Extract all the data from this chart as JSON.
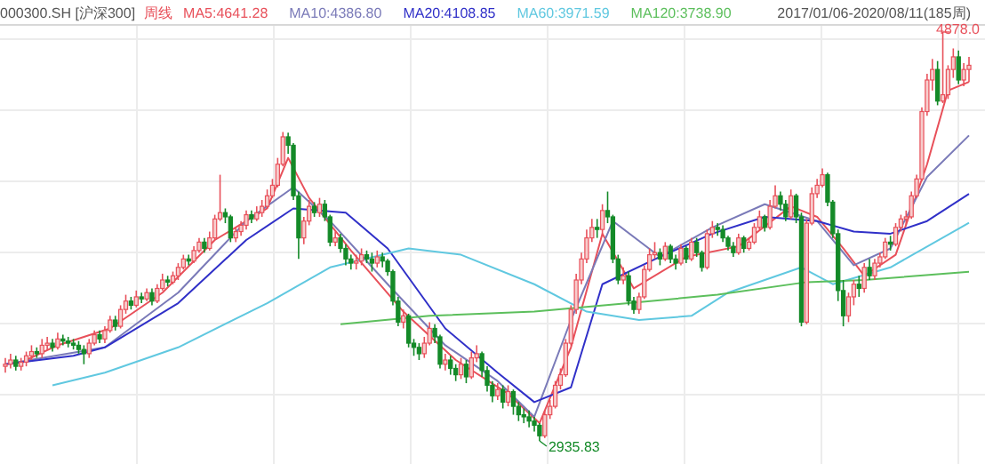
{
  "chart_data": {
    "type": "candlestick",
    "title": "000300.SH [沪深300]",
    "grid": true,
    "legend": "top",
    "annotations": [
      "周线",
      "2017/01/06-2020/08/11(185周)",
      "4878.0",
      "2935.83"
    ],
    "categories": [
      null,
      null,
      null,
      null,
      null,
      null,
      null,
      null,
      null,
      null,
      null,
      null,
      null,
      null,
      null,
      null,
      null,
      null,
      null,
      null,
      null,
      null,
      null,
      null,
      null,
      null,
      null,
      null,
      null,
      null,
      null,
      null,
      null,
      null,
      null,
      null,
      null,
      null,
      null,
      null,
      null,
      null,
      null,
      null,
      null,
      null,
      null,
      null,
      null,
      null,
      null,
      null,
      null,
      null,
      null,
      null,
      null,
      null,
      null,
      null,
      null,
      null,
      null,
      null,
      null,
      null,
      null,
      null,
      null,
      null,
      null,
      null,
      null,
      null,
      null,
      null,
      null,
      null,
      null,
      null,
      null,
      null,
      null,
      null,
      null,
      null,
      null,
      null,
      null,
      null,
      null,
      null,
      null,
      null,
      null,
      null,
      null,
      null,
      null,
      null,
      null,
      null,
      null,
      null,
      null,
      null,
      null,
      null,
      null,
      null,
      null,
      null,
      null,
      null,
      null,
      null,
      null,
      null,
      null,
      null,
      null,
      null,
      null,
      null,
      null,
      null,
      null,
      null,
      null,
      null,
      null,
      null,
      null,
      null,
      null,
      null,
      null,
      null,
      null,
      null,
      null,
      null,
      null,
      null,
      null,
      null,
      null,
      null,
      null,
      null,
      null,
      null,
      null,
      null,
      null,
      null,
      null,
      null,
      null,
      null,
      null,
      null,
      null,
      null,
      null,
      null,
      null,
      null,
      null,
      null,
      null,
      null,
      null,
      null,
      null,
      null,
      null,
      null,
      null,
      null,
      null,
      null,
      null,
      null,
      null
    ],
    "ohlc": [
      [
        3290,
        3330,
        3260,
        3300
      ],
      [
        3300,
        3350,
        3280,
        3320
      ],
      [
        3320,
        3340,
        3270,
        3290
      ],
      [
        3290,
        3330,
        3270,
        3310
      ],
      [
        3310,
        3360,
        3290,
        3340
      ],
      [
        3340,
        3390,
        3320,
        3360
      ],
      [
        3360,
        3380,
        3330,
        3350
      ],
      [
        3350,
        3420,
        3330,
        3390
      ],
      [
        3390,
        3430,
        3370,
        3400
      ],
      [
        3400,
        3420,
        3360,
        3380
      ],
      [
        3380,
        3450,
        3370,
        3420
      ],
      [
        3420,
        3440,
        3390,
        3410
      ],
      [
        3410,
        3430,
        3380,
        3400
      ],
      [
        3400,
        3420,
        3370,
        3390
      ],
      [
        3390,
        3410,
        3350,
        3370
      ],
      [
        3370,
        3390,
        3300,
        3350
      ],
      [
        3350,
        3420,
        3330,
        3400
      ],
      [
        3400,
        3460,
        3390,
        3440
      ],
      [
        3440,
        3460,
        3400,
        3420
      ],
      [
        3420,
        3480,
        3400,
        3460
      ],
      [
        3460,
        3530,
        3450,
        3510
      ],
      [
        3510,
        3530,
        3460,
        3480
      ],
      [
        3480,
        3580,
        3470,
        3560
      ],
      [
        3560,
        3630,
        3540,
        3600
      ],
      [
        3600,
        3620,
        3560,
        3580
      ],
      [
        3580,
        3650,
        3570,
        3620
      ],
      [
        3620,
        3640,
        3590,
        3610
      ],
      [
        3610,
        3660,
        3600,
        3640
      ],
      [
        3640,
        3660,
        3580,
        3600
      ],
      [
        3600,
        3680,
        3590,
        3660
      ],
      [
        3660,
        3730,
        3650,
        3700
      ],
      [
        3700,
        3720,
        3670,
        3690
      ],
      [
        3690,
        3740,
        3680,
        3720
      ],
      [
        3720,
        3780,
        3700,
        3760
      ],
      [
        3760,
        3820,
        3750,
        3800
      ],
      [
        3800,
        3820,
        3770,
        3790
      ],
      [
        3790,
        3860,
        3780,
        3840
      ],
      [
        3840,
        3900,
        3830,
        3880
      ],
      [
        3880,
        3900,
        3830,
        3850
      ],
      [
        3850,
        3930,
        3840,
        3900
      ],
      [
        3900,
        4010,
        3890,
        3990
      ],
      [
        3990,
        4200,
        3980,
        4020
      ],
      [
        4020,
        4040,
        3970,
        4000
      ],
      [
        4000,
        4010,
        3880,
        3900
      ],
      [
        3900,
        3950,
        3880,
        3930
      ],
      [
        3930,
        3980,
        3910,
        3960
      ],
      [
        3960,
        4030,
        3940,
        4010
      ],
      [
        4010,
        4030,
        3970,
        3990
      ],
      [
        3990,
        4050,
        3980,
        4020
      ],
      [
        4020,
        4080,
        4000,
        4050
      ],
      [
        4050,
        4130,
        4040,
        4100
      ],
      [
        4100,
        4180,
        4090,
        4150
      ],
      [
        4150,
        4280,
        4140,
        4250
      ],
      [
        4250,
        4403,
        4240,
        4380
      ],
      [
        4380,
        4400,
        4300,
        4340
      ],
      [
        4340,
        4350,
        4080,
        4100
      ],
      [
        4100,
        4120,
        3800,
        3900
      ],
      [
        3900,
        4000,
        3870,
        3980
      ],
      [
        3980,
        4080,
        3960,
        4050
      ],
      [
        4050,
        4070,
        4000,
        4020
      ],
      [
        4020,
        4090,
        4000,
        4060
      ],
      [
        4060,
        4080,
        3980,
        4000
      ],
      [
        4000,
        4010,
        3860,
        3880
      ],
      [
        3880,
        3930,
        3860,
        3900
      ],
      [
        3900,
        3920,
        3830,
        3850
      ],
      [
        3850,
        3870,
        3770,
        3800
      ],
      [
        3800,
        3820,
        3750,
        3780
      ],
      [
        3780,
        3820,
        3750,
        3790
      ],
      [
        3790,
        3850,
        3770,
        3820
      ],
      [
        3820,
        3840,
        3780,
        3800
      ],
      [
        3800,
        3830,
        3740,
        3780
      ],
      [
        3780,
        3840,
        3760,
        3810
      ],
      [
        3810,
        3830,
        3760,
        3790
      ],
      [
        3790,
        3800,
        3720,
        3740
      ],
      [
        3740,
        3750,
        3580,
        3600
      ],
      [
        3600,
        3620,
        3480,
        3500
      ],
      [
        3500,
        3560,
        3470,
        3530
      ],
      [
        3530,
        3540,
        3380,
        3400
      ],
      [
        3400,
        3420,
        3340,
        3380
      ],
      [
        3380,
        3400,
        3320,
        3350
      ],
      [
        3350,
        3430,
        3330,
        3400
      ],
      [
        3400,
        3500,
        3390,
        3470
      ],
      [
        3470,
        3490,
        3400,
        3430
      ],
      [
        3430,
        3440,
        3280,
        3300
      ],
      [
        3300,
        3350,
        3270,
        3320
      ],
      [
        3320,
        3340,
        3250,
        3280
      ],
      [
        3280,
        3300,
        3220,
        3250
      ],
      [
        3250,
        3330,
        3230,
        3300
      ],
      [
        3300,
        3320,
        3210,
        3240
      ],
      [
        3240,
        3360,
        3230,
        3330
      ],
      [
        3330,
        3390,
        3310,
        3350
      ],
      [
        3350,
        3360,
        3240,
        3270
      ],
      [
        3270,
        3290,
        3170,
        3200
      ],
      [
        3200,
        3220,
        3120,
        3150
      ],
      [
        3150,
        3210,
        3130,
        3180
      ],
      [
        3180,
        3200,
        3090,
        3120
      ],
      [
        3120,
        3200,
        3100,
        3170
      ],
      [
        3170,
        3180,
        3060,
        3100
      ],
      [
        3100,
        3120,
        3030,
        3060
      ],
      [
        3060,
        3090,
        3020,
        3050
      ],
      [
        3050,
        3080,
        3000,
        3030
      ],
      [
        3030,
        3050,
        2980,
        3010
      ],
      [
        3010,
        3020,
        2935.83,
        2960
      ],
      [
        2960,
        3080,
        2950,
        3060
      ],
      [
        3060,
        3130,
        3040,
        3100
      ],
      [
        3100,
        3220,
        3090,
        3200
      ],
      [
        3200,
        3280,
        3180,
        3250
      ],
      [
        3250,
        3420,
        3240,
        3400
      ],
      [
        3400,
        3580,
        3390,
        3560
      ],
      [
        3560,
        3730,
        3540,
        3700
      ],
      [
        3700,
        3830,
        3680,
        3800
      ],
      [
        3800,
        3940,
        3780,
        3900
      ],
      [
        3900,
        3990,
        3880,
        3950
      ],
      [
        3950,
        3990,
        3900,
        3940
      ],
      [
        3940,
        4060,
        3920,
        4030
      ],
      [
        4030,
        4120,
        3970,
        4000
      ],
      [
        4000,
        4010,
        3780,
        3800
      ],
      [
        3800,
        3820,
        3680,
        3700
      ],
      [
        3700,
        3760,
        3680,
        3720
      ],
      [
        3720,
        3740,
        3580,
        3600
      ],
      [
        3600,
        3620,
        3540,
        3560
      ],
      [
        3560,
        3640,
        3540,
        3620
      ],
      [
        3620,
        3770,
        3610,
        3750
      ],
      [
        3750,
        3850,
        3740,
        3820
      ],
      [
        3820,
        3880,
        3800,
        3830
      ],
      [
        3830,
        3850,
        3770,
        3800
      ],
      [
        3800,
        3880,
        3790,
        3860
      ],
      [
        3860,
        3870,
        3780,
        3800
      ],
      [
        3800,
        3820,
        3750,
        3780
      ],
      [
        3780,
        3870,
        3770,
        3850
      ],
      [
        3850,
        3860,
        3780,
        3800
      ],
      [
        3800,
        3900,
        3790,
        3880
      ],
      [
        3880,
        3900,
        3810,
        3830
      ],
      [
        3830,
        3840,
        3740,
        3760
      ],
      [
        3760,
        3940,
        3750,
        3920
      ],
      [
        3920,
        3980,
        3900,
        3950
      ],
      [
        3950,
        3970,
        3910,
        3940
      ],
      [
        3940,
        3960,
        3880,
        3900
      ],
      [
        3900,
        3910,
        3840,
        3860
      ],
      [
        3860,
        3880,
        3810,
        3830
      ],
      [
        3830,
        3920,
        3820,
        3900
      ],
      [
        3900,
        3910,
        3830,
        3850
      ],
      [
        3850,
        3900,
        3840,
        3880
      ],
      [
        3880,
        3970,
        3870,
        3950
      ],
      [
        3950,
        4030,
        3940,
        4000
      ],
      [
        4000,
        4010,
        3930,
        3950
      ],
      [
        3950,
        4080,
        3940,
        4050
      ],
      [
        4050,
        4150,
        4040,
        4100
      ],
      [
        4100,
        4120,
        4030,
        4060
      ],
      [
        4060,
        4080,
        3980,
        4000
      ],
      [
        4000,
        4130,
        3990,
        4100
      ],
      [
        4100,
        4110,
        3970,
        4000
      ],
      [
        4000,
        4020,
        3480,
        3500
      ],
      [
        3500,
        3990,
        3490,
        3970
      ],
      [
        3970,
        4140,
        3960,
        4110
      ],
      [
        4110,
        4180,
        4090,
        4150
      ],
      [
        4150,
        4230,
        4140,
        4200
      ],
      [
        4200,
        4210,
        4050,
        4070
      ],
      [
        4070,
        4080,
        3900,
        3920
      ],
      [
        3920,
        3940,
        3600,
        3650
      ],
      [
        3650,
        3700,
        3480,
        3530
      ],
      [
        3530,
        3640,
        3500,
        3620
      ],
      [
        3620,
        3700,
        3580,
        3680
      ],
      [
        3680,
        3720,
        3620,
        3660
      ],
      [
        3660,
        3780,
        3640,
        3760
      ],
      [
        3760,
        3800,
        3700,
        3720
      ],
      [
        3720,
        3800,
        3700,
        3780
      ],
      [
        3780,
        3830,
        3760,
        3810
      ],
      [
        3810,
        3900,
        3800,
        3880
      ],
      [
        3880,
        3910,
        3840,
        3870
      ],
      [
        3870,
        3970,
        3860,
        3950
      ],
      [
        3950,
        4010,
        3930,
        3990
      ],
      [
        3990,
        4030,
        3960,
        4000
      ],
      [
        4000,
        4120,
        3990,
        4100
      ],
      [
        4100,
        4200,
        4090,
        4180
      ],
      [
        4180,
        4520,
        4170,
        4500
      ],
      [
        4500,
        4680,
        4480,
        4650
      ],
      [
        4650,
        4750,
        4600,
        4700
      ],
      [
        4700,
        4740,
        4530,
        4550
      ],
      [
        4550,
        4878,
        4540,
        4580
      ],
      [
        4580,
        4720,
        4560,
        4700
      ],
      [
        4700,
        4800,
        4660,
        4760
      ],
      [
        4760,
        4790,
        4630,
        4650
      ],
      [
        4650,
        4730,
        4620,
        4700
      ],
      [
        4700,
        4760,
        4640,
        4720
      ]
    ],
    "series": [
      {
        "type": "line",
        "name": "MA5:4641.28",
        "color": "#e8505a",
        "values": [
          null,
          null,
          null,
          null,
          3320,
          null,
          null,
          null,
          null,
          null,
          3390,
          null,
          null,
          null,
          null,
          null,
          null,
          null,
          null,
          null,
          3470,
          null,
          null,
          null,
          null,
          null,
          null,
          null,
          null,
          null,
          3640,
          null,
          null,
          null,
          null,
          null,
          null,
          null,
          null,
          null,
          3890,
          null,
          null,
          null,
          null,
          null,
          null,
          null,
          null,
          null,
          4040,
          null,
          null,
          null,
          4280,
          null,
          null,
          null,
          4090,
          null,
          null,
          null,
          null,
          null,
          null,
          null,
          3840,
          null,
          null,
          null,
          null,
          null,
          null,
          null,
          null,
          null,
          3550,
          null,
          null,
          null,
          null,
          null,
          null,
          null,
          null,
          null,
          3320,
          null,
          null,
          null,
          null,
          null,
          null,
          null,
          null,
          null,
          3160,
          null,
          null,
          null,
          null,
          null,
          3020,
          null,
          null,
          null,
          null,
          null,
          3380,
          null,
          null,
          null,
          null,
          null,
          3920,
          null,
          null,
          null,
          null,
          null,
          3660,
          null,
          null,
          null,
          null,
          null,
          null,
          null,
          null,
          null,
          3810,
          null,
          null,
          null,
          null,
          null,
          null,
          null,
          null,
          null,
          3860,
          null,
          null,
          null,
          null,
          null,
          null,
          null,
          null,
          null,
          4050,
          null,
          null,
          null,
          null,
          4000,
          null,
          null,
          null,
          null,
          3850,
          null,
          null,
          null,
          3720,
          null,
          null,
          null,
          null,
          null,
          3820,
          null,
          null,
          null,
          null,
          null,
          4250,
          null,
          null,
          null,
          4600,
          null,
          null,
          null,
          4641.28
        ]
      },
      {
        "type": "line",
        "name": "MA10:4386.80",
        "color": "#7a7ab8",
        "values": [
          3300,
          null,
          null,
          null,
          null,
          null,
          null,
          null,
          null,
          null,
          null,
          null,
          null,
          null,
          null,
          null,
          null,
          null,
          null,
          3380,
          null,
          null,
          null,
          null,
          null,
          null,
          null,
          null,
          null,
          null,
          null,
          null,
          null,
          3640,
          null,
          null,
          null,
          null,
          null,
          null,
          null,
          null,
          null,
          null,
          null,
          null,
          3980,
          null,
          null,
          null,
          null,
          null,
          null,
          null,
          null,
          4140,
          null,
          null,
          null,
          null,
          null,
          null,
          3980,
          null,
          null,
          null,
          null,
          null,
          null,
          null,
          null,
          null,
          null,
          3680,
          null,
          null,
          null,
          null,
          null,
          null,
          null,
          null,
          null,
          null,
          3390,
          null,
          null,
          null,
          null,
          null,
          null,
          null,
          null,
          null,
          3220,
          null,
          null,
          null,
          null,
          null,
          null,
          3050,
          null,
          null,
          null,
          null,
          null,
          null,
          3510,
          null,
          null,
          null,
          null,
          null,
          null,
          null,
          3980,
          null,
          null,
          null,
          null,
          null,
          null,
          null,
          null,
          3810,
          null,
          null,
          null,
          null,
          null,
          null,
          null,
          null,
          null,
          3950,
          null,
          null,
          null,
          null,
          null,
          null,
          null,
          null,
          null,
          4060,
          null,
          null,
          null,
          null,
          null,
          null,
          null,
          null,
          null,
          3980,
          null,
          null,
          null,
          null,
          null,
          null,
          3770,
          null,
          null,
          null,
          null,
          null,
          null,
          3850,
          null,
          null,
          null,
          null,
          null,
          null,
          4190,
          null,
          null,
          null,
          null,
          null,
          null,
          null,
          4386.8
        ]
      },
      {
        "type": "line",
        "name": "MA20:4108.85",
        "color": "#3030c8",
        "values": [
          3300,
          null,
          null,
          null,
          null,
          null,
          null,
          null,
          null,
          null,
          null,
          null,
          null,
          3340,
          null,
          null,
          null,
          null,
          null,
          3380,
          null,
          null,
          null,
          null,
          null,
          null,
          null,
          null,
          null,
          null,
          null,
          null,
          null,
          3590,
          null,
          null,
          null,
          null,
          null,
          null,
          null,
          null,
          null,
          null,
          null,
          null,
          3890,
          null,
          null,
          null,
          null,
          null,
          null,
          null,
          null,
          4040,
          null,
          null,
          null,
          null,
          null,
          null,
          null,
          null,
          null,
          4020,
          null,
          null,
          null,
          null,
          null,
          null,
          null,
          3850,
          null,
          null,
          null,
          null,
          null,
          null,
          null,
          null,
          null,
          null,
          3470,
          null,
          null,
          null,
          null,
          null,
          null,
          null,
          null,
          null,
          3260,
          null,
          null,
          null,
          null,
          null,
          null,
          3120,
          null,
          null,
          null,
          null,
          null,
          null,
          3190,
          null,
          null,
          null,
          null,
          null,
          3680,
          null,
          null,
          null,
          null,
          null,
          null,
          null,
          null,
          null,
          null,
          3810,
          null,
          null,
          null,
          null,
          null,
          null,
          null,
          null,
          null,
          3920,
          null,
          null,
          null,
          null,
          null,
          null,
          null,
          null,
          null,
          4000,
          null,
          null,
          null,
          null,
          null,
          null,
          null,
          null,
          null,
          3980,
          null,
          null,
          null,
          null,
          null,
          null,
          3930,
          null,
          null,
          null,
          null,
          null,
          null,
          3920,
          null,
          null,
          null,
          null,
          null,
          null,
          3980,
          null,
          null,
          null,
          null,
          null,
          null,
          null,
          4108.85
        ]
      },
      {
        "type": "line",
        "name": "MA60:3971.59",
        "color": "#60c8e0",
        "values": [
          null,
          null,
          null,
          null,
          null,
          null,
          null,
          null,
          null,
          3200,
          null,
          null,
          null,
          null,
          null,
          null,
          null,
          null,
          null,
          3260,
          null,
          null,
          null,
          null,
          null,
          null,
          null,
          null,
          null,
          null,
          null,
          null,
          null,
          3380,
          null,
          null,
          null,
          null,
          null,
          null,
          null,
          null,
          null,
          null,
          null,
          null,
          null,
          null,
          null,
          null,
          3590,
          null,
          null,
          null,
          null,
          null,
          null,
          null,
          null,
          null,
          null,
          null,
          3760,
          null,
          null,
          null,
          null,
          null,
          null,
          null,
          null,
          null,
          null,
          null,
          null,
          null,
          null,
          3850,
          null,
          null,
          null,
          null,
          null,
          null,
          null,
          null,
          null,
          3820,
          null,
          null,
          null,
          null,
          null,
          null,
          null,
          null,
          null,
          null,
          null,
          null,
          null,
          3680,
          null,
          null,
          null,
          null,
          null,
          null,
          null,
          null,
          null,
          3550,
          null,
          null,
          null,
          null,
          null,
          null,
          null,
          null,
          null,
          3510,
          null,
          null,
          null,
          null,
          null,
          null,
          null,
          null,
          null,
          3530,
          null,
          null,
          null,
          null,
          null,
          null,
          3640,
          null,
          null,
          null,
          null,
          null,
          null,
          null,
          null,
          null,
          null,
          null,
          null,
          null,
          3760,
          null,
          null,
          null,
          null,
          null,
          3680,
          null,
          null,
          null,
          null,
          null,
          null,
          null,
          null,
          null,
          null,
          3760,
          null,
          null,
          null,
          null,
          null,
          null,
          null,
          null,
          null,
          null,
          null,
          null,
          null,
          null,
          3971.59
        ]
      },
      {
        "type": "line",
        "name": "MA120:3738.90",
        "color": "#5cbf5c",
        "values": [
          null,
          null,
          null,
          null,
          null,
          null,
          null,
          null,
          null,
          null,
          null,
          null,
          null,
          null,
          null,
          null,
          null,
          null,
          null,
          null,
          null,
          null,
          null,
          null,
          null,
          null,
          null,
          null,
          null,
          null,
          null,
          null,
          null,
          null,
          null,
          null,
          null,
          null,
          null,
          null,
          null,
          null,
          null,
          null,
          null,
          null,
          null,
          null,
          null,
          null,
          null,
          null,
          null,
          null,
          null,
          null,
          null,
          null,
          null,
          null,
          null,
          null,
          null,
          null,
          3490,
          null,
          null,
          null,
          null,
          null,
          null,
          null,
          null,
          null,
          null,
          null,
          null,
          null,
          null,
          null,
          null,
          3530,
          null,
          null,
          null,
          null,
          null,
          null,
          null,
          null,
          null,
          null,
          null,
          null,
          null,
          null,
          null,
          null,
          null,
          null,
          null,
          3550,
          null,
          null,
          null,
          null,
          null,
          null,
          null,
          null,
          null,
          null,
          null,
          null,
          null,
          null,
          null,
          null,
          null,
          3590,
          null,
          null,
          null,
          null,
          null,
          null,
          null,
          null,
          null,
          null,
          null,
          null,
          null,
          null,
          null,
          null,
          3630,
          null,
          null,
          null,
          null,
          null,
          null,
          null,
          null,
          null,
          null,
          null,
          null,
          null,
          null,
          null,
          null,
          3690,
          null,
          null,
          null,
          null,
          null,
          null,
          null,
          null,
          null,
          null,
          3700,
          null,
          null,
          null,
          null,
          null,
          null,
          null,
          null,
          null,
          null,
          null,
          null,
          null,
          null,
          null,
          null,
          null,
          null,
          null,
          3738.9
        ]
      }
    ]
  }
}
